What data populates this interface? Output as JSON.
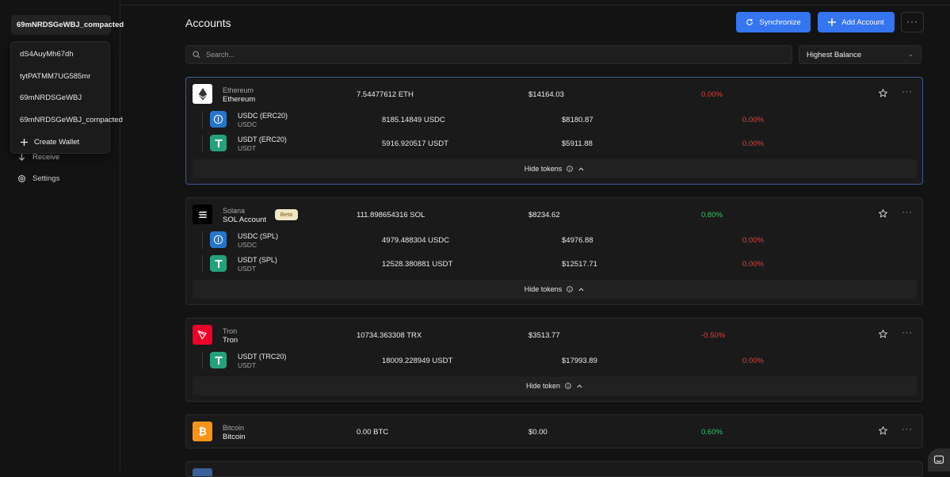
{
  "sidebar": {
    "wallet_selected": "69mNRDSGeWBJ_compacted",
    "dropdown_items": [
      "dS4AuyMh67dh",
      "tytPATMM7UG585mr",
      "69mNRDSGeWBJ",
      "69mNRDSGeWBJ_compacted"
    ],
    "create_wallet": "Create Wallet",
    "nav": [
      {
        "label": "Receive",
        "icon": "arrow-down-icon"
      },
      {
        "label": "Settings",
        "icon": "gear-icon"
      }
    ]
  },
  "header": {
    "title": "Accounts",
    "sync_label": "Synchronize",
    "add_label": "Add Account",
    "more": "···"
  },
  "search": {
    "placeholder": "Search..."
  },
  "sort": {
    "selected": "Highest Balance"
  },
  "accounts": [
    {
      "network": "Ethereum",
      "name": "Ethereum",
      "amount": "7.54477612 ETH",
      "usd": "$14164.03",
      "change": "0.00%",
      "tokens": [
        {
          "name": "USDC (ERC20)",
          "symbol": "USDC",
          "amount": "8185.14849 USDC",
          "usd": "$8180.87",
          "change": "0.00%"
        },
        {
          "name": "USDT (ERC20)",
          "symbol": "USDT",
          "amount": "5916.920517 USDT",
          "usd": "$5911.88",
          "change": "0.00%"
        }
      ],
      "hide_label": "Hide tokens"
    },
    {
      "network": "Solana",
      "name": "SOL Account",
      "badge": "Beta",
      "amount": "111.898654316 SOL",
      "usd": "$8234.62",
      "change": "0.80%",
      "tokens": [
        {
          "name": "USDC (SPL)",
          "symbol": "USDC",
          "amount": "4979.488304 USDC",
          "usd": "$4976.88",
          "change": "0.00%"
        },
        {
          "name": "USDT (SPL)",
          "symbol": "USDT",
          "amount": "12528.380881 USDT",
          "usd": "$12517.71",
          "change": "0.00%"
        }
      ],
      "hide_label": "Hide tokens"
    },
    {
      "network": "Tron",
      "name": "Tron",
      "amount": "10734.363308 TRX",
      "usd": "$3513.77",
      "change": "-0.50%",
      "tokens": [
        {
          "name": "USDT (TRC20)",
          "symbol": "USDT",
          "amount": "18009.228949 USDT",
          "usd": "$17993.89",
          "change": "0.00%"
        }
      ],
      "hide_label": "Hide token"
    },
    {
      "network": "Bitcoin",
      "name": "Bitcoin",
      "amount": "0.00 BTC",
      "usd": "$0.00",
      "change": "0.60%"
    }
  ],
  "colors": {
    "accent": "#3575f0",
    "positive": "#3cc46a",
    "negative": "#e0413c",
    "background": "#131313",
    "card": "#1a1a1a"
  }
}
